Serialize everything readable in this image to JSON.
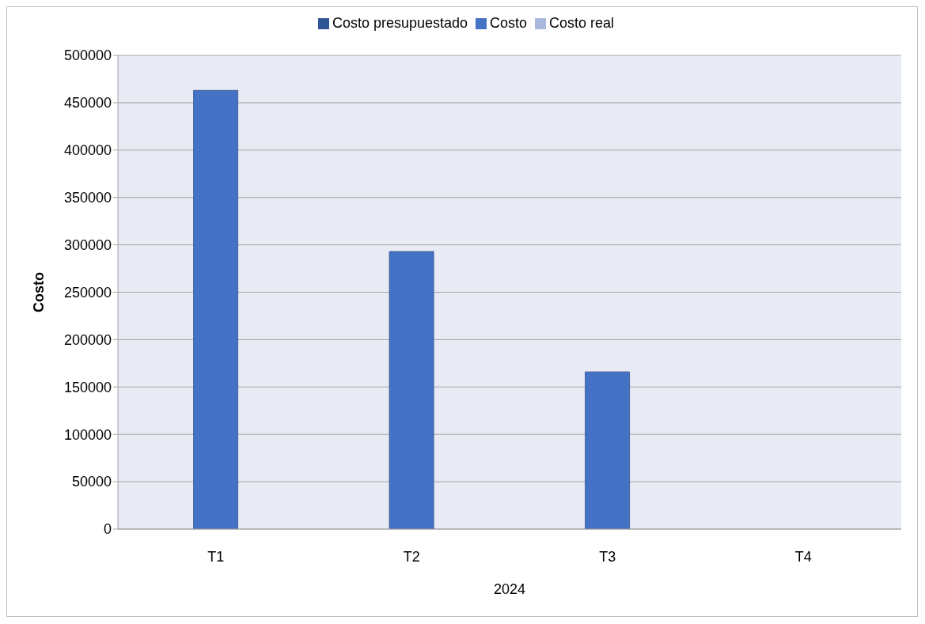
{
  "chart_data": {
    "type": "bar",
    "categories": [
      "T1",
      "T2",
      "T3",
      "T4"
    ],
    "series": [
      {
        "name": "Costo presupuestado",
        "color": "#2f5597",
        "values": [
          null,
          null,
          null,
          null
        ]
      },
      {
        "name": "Costo",
        "color": "#4472c4",
        "values": [
          463000,
          293000,
          166000,
          null
        ]
      },
      {
        "name": "Costo real",
        "color": "#a9b8dc",
        "values": [
          null,
          null,
          null,
          null
        ]
      }
    ],
    "ylabel": "Costo",
    "xlabel": "2024",
    "ylim": [
      0,
      500000
    ],
    "yticks": [
      0,
      50000,
      100000,
      150000,
      200000,
      250000,
      300000,
      350000,
      400000,
      450000,
      500000
    ],
    "grid": "y",
    "legend": "top"
  }
}
